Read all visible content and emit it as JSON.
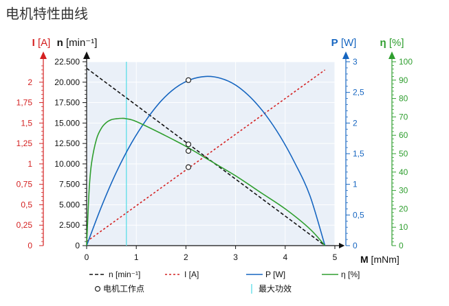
{
  "page": {
    "title": "电机特性曲线"
  },
  "colors": {
    "speed": "#111111",
    "current": "#d42020",
    "power": "#1565c0",
    "efficiency": "#2e9e2e",
    "max_efficiency_line": "#6fe0ea",
    "plot_bg": "#eaf0f8",
    "grid": "#ffffff"
  },
  "chart_data": {
    "type": "line",
    "title": "电机特性曲线",
    "xlabel_bold": "M",
    "xlabel_unit": "[mNm]",
    "xlim": [
      0,
      5
    ],
    "x_ticks": [
      0,
      1,
      2,
      3,
      4,
      5
    ],
    "axes": {
      "speed": {
        "label_bold": "n",
        "label_unit": "[min⁻¹]",
        "ylim": [
          0,
          22500
        ],
        "ticks": [
          0,
          2500,
          5000,
          7500,
          10000,
          12500,
          15000,
          17500,
          20000,
          22500
        ],
        "tick_labels": [
          "0",
          "2.500",
          "5.000",
          "7.500",
          "10.000",
          "12.500",
          "15.000",
          "17.500",
          "20.000",
          "22.500"
        ]
      },
      "current": {
        "label_bold": "I",
        "label_unit": "[A]",
        "ylim": [
          0,
          2.25
        ],
        "ticks": [
          0,
          0.25,
          0.5,
          0.75,
          1,
          1.25,
          1.5,
          1.75,
          2
        ],
        "tick_labels": [
          "0",
          "0,25",
          "0,5",
          "0,75",
          "1",
          "1,25",
          "1,5",
          "1,75",
          "2"
        ]
      },
      "power": {
        "label_bold": "P",
        "label_unit": "[W]",
        "ylim": [
          0,
          3
        ],
        "ticks": [
          0,
          0.5,
          1,
          1.5,
          2,
          2.5,
          3
        ],
        "tick_labels": [
          "0",
          "0,5",
          "1",
          "1,5",
          "2",
          "2,5",
          "3"
        ]
      },
      "efficiency": {
        "label_bold": "η",
        "label_unit": "[%]",
        "ylim": [
          0,
          100
        ],
        "ticks": [
          0,
          10,
          20,
          30,
          40,
          50,
          60,
          70,
          80,
          90,
          100
        ],
        "tick_labels": [
          "0",
          "10",
          "20",
          "30",
          "40",
          "50",
          "60",
          "70",
          "80",
          "90",
          "100"
        ]
      }
    },
    "series": [
      {
        "name": "n [min⁻¹]",
        "axis": "speed",
        "style": "dashed",
        "x": [
          0,
          4.8
        ],
        "y": [
          21700,
          0
        ]
      },
      {
        "name": "I [A]",
        "axis": "current",
        "style": "dotted",
        "x": [
          0,
          4.8
        ],
        "y": [
          0.05,
          2.15
        ]
      },
      {
        "name": "P [W]",
        "axis": "power",
        "style": "solid",
        "x": [
          0,
          0.3,
          0.6,
          0.9,
          1.2,
          1.5,
          1.8,
          2.1,
          2.4,
          2.7,
          3.0,
          3.3,
          3.6,
          3.9,
          4.2,
          4.5,
          4.8
        ],
        "y": [
          0,
          0.64,
          1.2,
          1.67,
          2.05,
          2.36,
          2.58,
          2.71,
          2.76,
          2.73,
          2.62,
          2.42,
          2.14,
          1.78,
          1.34,
          0.81,
          0
        ]
      },
      {
        "name": "η [%]",
        "axis": "efficiency",
        "style": "solid",
        "x": [
          0,
          0.05,
          0.1,
          0.2,
          0.3,
          0.4,
          0.5,
          0.6,
          0.7,
          0.8,
          1.0,
          1.5,
          2.0,
          2.5,
          3.0,
          3.5,
          4.0,
          4.5,
          4.8
        ],
        "y": [
          0,
          30,
          45,
          58,
          64,
          67,
          68.5,
          69,
          69.2,
          69,
          67.5,
          61,
          54,
          46,
          38,
          29,
          20,
          9,
          0
        ]
      }
    ],
    "operating_point": {
      "label": "电机工作点",
      "x": 2.05,
      "values": {
        "speed": 12400,
        "current": 0.96,
        "power": 2.7,
        "efficiency": 51.5
      }
    },
    "max_efficiency": {
      "label": "最大功效",
      "x": 0.8
    },
    "grid": true,
    "legend": {
      "position": "bottom",
      "items": [
        "n [min⁻¹]",
        "I [A]",
        "P [W]",
        "η [%]",
        "电机工作点",
        "最大功效"
      ]
    }
  }
}
